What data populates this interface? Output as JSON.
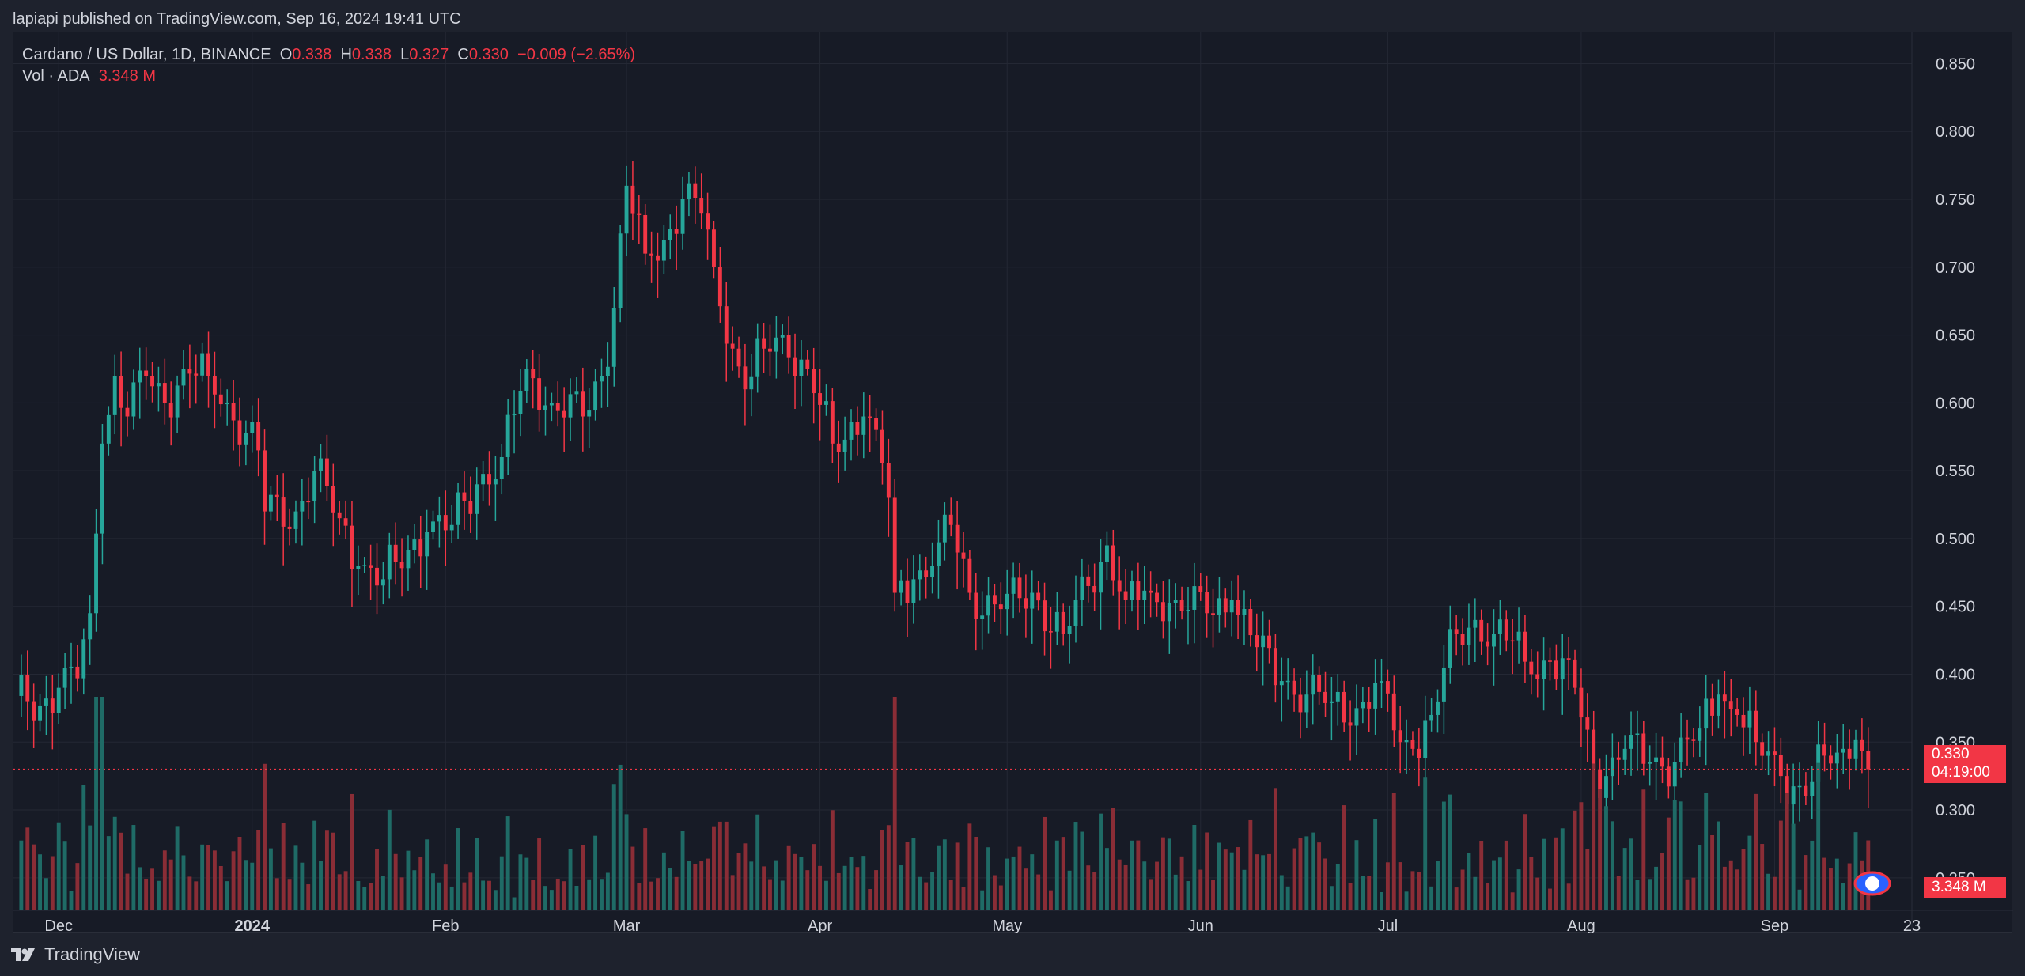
{
  "publish_text": "lapiapi published on TradingView.com, Sep 16, 2024 19:41 UTC",
  "legend": {
    "symbol": "Cardano / US Dollar, 1D, BINANCE",
    "o_label": "O",
    "o_value": "0.338",
    "h_label": "H",
    "h_value": "0.338",
    "l_label": "L",
    "l_value": "0.327",
    "c_label": "C",
    "c_value": "0.330",
    "change": "−0.009 (−2.65%)",
    "vol_label": "Vol · ADA",
    "vol_value": "3.348 M"
  },
  "last_price_tag": {
    "price": "0.330",
    "countdown": "04:19:00"
  },
  "volume_tag": "3.348 M",
  "footer_brand": "TradingView",
  "colors": {
    "up": "#26a69a",
    "down": "#f23645",
    "up_volume": "#1f6b66",
    "down_volume": "#8a2d36",
    "background": "#171b26",
    "grid": "#242834",
    "text": "#d1d4dc"
  },
  "chart_data": {
    "type": "candlestick",
    "title": "Cardano / US Dollar, 1D, BINANCE",
    "price_scale": {
      "ticks": [
        0.25,
        0.3,
        0.35,
        0.4,
        0.45,
        0.5,
        0.55,
        0.6,
        0.65,
        0.7,
        0.75,
        0.8,
        0.85
      ],
      "tick_labels": [
        "0.250",
        "0.300",
        "0.350",
        "0.400",
        "0.450",
        "0.500",
        "0.550",
        "0.600",
        "0.650",
        "0.700",
        "0.750",
        "0.800",
        "0.850"
      ],
      "range": [
        0.226,
        0.873
      ]
    },
    "time_axis": {
      "start_date": "2023-11-24",
      "end_date": "2024-09-23",
      "labels": [
        {
          "text": "Dec",
          "date": "2023-12-01"
        },
        {
          "text": "2024",
          "date": "2024-01-01"
        },
        {
          "text": "Feb",
          "date": "2024-02-01"
        },
        {
          "text": "Mar",
          "date": "2024-03-01"
        },
        {
          "text": "Apr",
          "date": "2024-04-01"
        },
        {
          "text": "May",
          "date": "2024-05-01"
        },
        {
          "text": "Jun",
          "date": "2024-06-01"
        },
        {
          "text": "Jul",
          "date": "2024-07-01"
        },
        {
          "text": "Aug",
          "date": "2024-08-01"
        },
        {
          "text": "Sep",
          "date": "2024-09-01"
        },
        {
          "text": "23",
          "date": "2024-09-23"
        }
      ]
    },
    "last_close": 0.33,
    "close_series": {
      "dates": [
        "2023-11-24",
        "2023-11-28",
        "2023-12-01",
        "2023-12-04",
        "2023-12-06",
        "2023-12-08",
        "2023-12-10",
        "2023-12-12",
        "2023-12-15",
        "2023-12-18",
        "2023-12-21",
        "2023-12-25",
        "2023-12-28",
        "2024-01-02",
        "2024-01-03",
        "2024-01-08",
        "2024-01-11",
        "2024-01-15",
        "2024-01-18",
        "2024-01-22",
        "2024-01-24",
        "2024-01-29",
        "2024-02-02",
        "2024-02-06",
        "2024-02-10",
        "2024-02-14",
        "2024-02-18",
        "2024-02-23",
        "2024-02-26",
        "2024-02-28",
        "2024-03-01",
        "2024-03-04",
        "2024-03-07",
        "2024-03-10",
        "2024-03-13",
        "2024-03-15",
        "2024-03-18",
        "2024-03-20",
        "2024-03-23",
        "2024-03-26",
        "2024-03-30",
        "2024-04-03",
        "2024-04-08",
        "2024-04-10",
        "2024-04-12",
        "2024-04-13",
        "2024-04-16",
        "2024-04-19",
        "2024-04-22",
        "2024-04-25",
        "2024-04-30",
        "2024-05-05",
        "2024-05-10",
        "2024-05-14",
        "2024-05-17",
        "2024-05-20",
        "2024-05-24",
        "2024-05-28",
        "2024-06-02",
        "2024-06-06",
        "2024-06-10",
        "2024-06-14",
        "2024-06-18",
        "2024-06-22",
        "2024-06-26",
        "2024-06-30",
        "2024-07-03",
        "2024-07-05",
        "2024-07-08",
        "2024-07-12",
        "2024-07-15",
        "2024-07-18",
        "2024-07-21",
        "2024-07-24",
        "2024-07-27",
        "2024-07-31",
        "2024-08-03",
        "2024-08-05",
        "2024-08-08",
        "2024-08-12",
        "2024-08-16",
        "2024-08-20",
        "2024-08-23",
        "2024-08-26",
        "2024-08-29",
        "2024-09-02",
        "2024-09-06",
        "2024-09-09",
        "2024-09-12",
        "2024-09-14",
        "2024-09-16"
      ],
      "close": [
        0.384,
        0.377,
        0.39,
        0.397,
        0.445,
        0.57,
        0.62,
        0.59,
        0.62,
        0.6,
        0.625,
        0.62,
        0.6,
        0.565,
        0.52,
        0.52,
        0.55,
        0.515,
        0.48,
        0.47,
        0.483,
        0.505,
        0.51,
        0.54,
        0.56,
        0.625,
        0.6,
        0.59,
        0.62,
        0.67,
        0.76,
        0.71,
        0.72,
        0.75,
        0.74,
        0.7,
        0.64,
        0.61,
        0.64,
        0.65,
        0.625,
        0.57,
        0.59,
        0.58,
        0.53,
        0.46,
        0.47,
        0.48,
        0.51,
        0.46,
        0.448,
        0.46,
        0.43,
        0.465,
        0.495,
        0.455,
        0.46,
        0.455,
        0.445,
        0.455,
        0.42,
        0.395,
        0.385,
        0.38,
        0.375,
        0.395,
        0.35,
        0.345,
        0.37,
        0.43,
        0.44,
        0.43,
        0.425,
        0.4,
        0.41,
        0.39,
        0.33,
        0.325,
        0.345,
        0.335,
        0.335,
        0.36,
        0.385,
        0.37,
        0.35,
        0.325,
        0.31,
        0.34,
        0.345,
        0.352,
        0.33
      ]
    },
    "volume": {
      "last": "3.348 M"
    },
    "grid": true
  }
}
